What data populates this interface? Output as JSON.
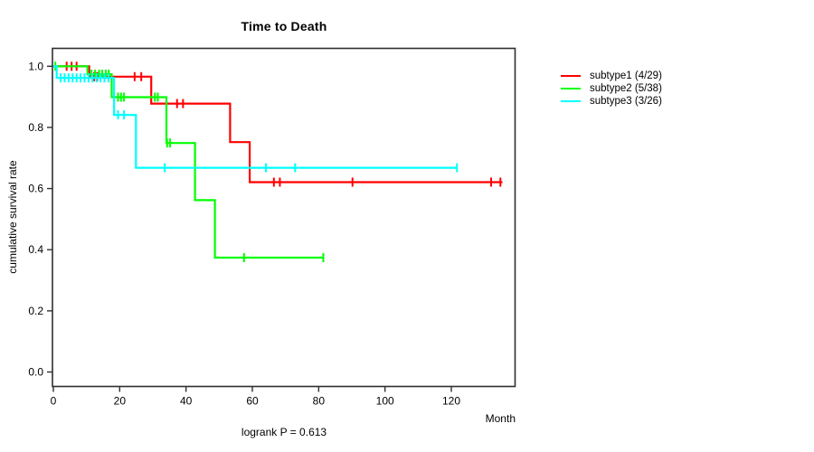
{
  "chart_data": {
    "type": "line",
    "subtype": "kaplan-meier-step",
    "title": "Time to Death",
    "xlabel": "Month",
    "ylabel": "cumulative survival rate",
    "annotation": "logrank P = 0.613",
    "xlim": [
      0,
      140
    ],
    "ylim": [
      0,
      1.0
    ],
    "grid": false,
    "legend_position": "right",
    "x_ticks": [
      0,
      20,
      40,
      60,
      80,
      100,
      120
    ],
    "y_ticks": [
      "0.0",
      "0.2",
      "0.4",
      "0.6",
      "0.8",
      "1.0"
    ],
    "axis_color": "#2f2f2f",
    "series": [
      {
        "name": "subtype1",
        "label": "subtype1 (4/29)",
        "color": "#ff0000",
        "events_over_n": "4/29",
        "steps": [
          [
            0,
            1.0
          ],
          [
            10.8,
            1.0
          ],
          [
            10.8,
            0.966
          ],
          [
            29.5,
            0.966
          ],
          [
            29.5,
            0.878
          ],
          [
            53.3,
            0.878
          ],
          [
            53.3,
            0.752
          ],
          [
            59.2,
            0.752
          ],
          [
            59.2,
            0.621
          ],
          [
            135.4,
            0.621
          ]
        ],
        "censors": [
          [
            4,
            1.0
          ],
          [
            5.5,
            1.0
          ],
          [
            7,
            1.0
          ],
          [
            12.3,
            0.966
          ],
          [
            13.2,
            0.966
          ],
          [
            24.5,
            0.966
          ],
          [
            26.5,
            0.966
          ],
          [
            37.3,
            0.878
          ],
          [
            39.1,
            0.878
          ],
          [
            66.5,
            0.621
          ],
          [
            68.3,
            0.621
          ],
          [
            90.2,
            0.621
          ],
          [
            132,
            0.621
          ],
          [
            134.8,
            0.621
          ]
        ]
      },
      {
        "name": "subtype2",
        "label": "subtype2 (5/38)",
        "color": "#00ff00",
        "events_over_n": "5/38",
        "steps": [
          [
            0,
            1.0
          ],
          [
            10.3,
            1.0
          ],
          [
            10.3,
            0.974
          ],
          [
            17.6,
            0.974
          ],
          [
            17.6,
            0.899
          ],
          [
            34.1,
            0.899
          ],
          [
            34.1,
            0.749
          ],
          [
            42.7,
            0.749
          ],
          [
            42.7,
            0.562
          ],
          [
            48.7,
            0.562
          ],
          [
            48.7,
            0.374
          ],
          [
            81.4,
            0.374
          ]
        ],
        "censors": [
          [
            0.6,
            1.0
          ],
          [
            11.5,
            0.974
          ],
          [
            12.6,
            0.974
          ],
          [
            13.8,
            0.974
          ],
          [
            14.7,
            0.974
          ],
          [
            15.8,
            0.974
          ],
          [
            16.7,
            0.974
          ],
          [
            19.5,
            0.899
          ],
          [
            20.4,
            0.899
          ],
          [
            21.3,
            0.899
          ],
          [
            30.6,
            0.899
          ],
          [
            31.5,
            0.899
          ],
          [
            34.3,
            0.749
          ],
          [
            35.2,
            0.749
          ],
          [
            57.5,
            0.374
          ],
          [
            81.4,
            0.374
          ]
        ]
      },
      {
        "name": "subtype3",
        "label": "subtype3 (3/26)",
        "color": "#00ffff",
        "events_over_n": "3/26",
        "steps": [
          [
            0,
            1.0
          ],
          [
            1,
            1.0
          ],
          [
            1,
            0.962
          ],
          [
            18.3,
            0.962
          ],
          [
            18.3,
            0.841
          ],
          [
            24.9,
            0.841
          ],
          [
            24.9,
            0.668
          ],
          [
            121.7,
            0.668
          ]
        ],
        "censors": [
          [
            2.2,
            0.962
          ],
          [
            3.4,
            0.962
          ],
          [
            4.6,
            0.962
          ],
          [
            5.8,
            0.962
          ],
          [
            7,
            0.962
          ],
          [
            8.2,
            0.962
          ],
          [
            9.4,
            0.962
          ],
          [
            10.6,
            0.962
          ],
          [
            11.8,
            0.962
          ],
          [
            13,
            0.962
          ],
          [
            14.2,
            0.962
          ],
          [
            15.4,
            0.962
          ],
          [
            16.6,
            0.962
          ],
          [
            19.5,
            0.841
          ],
          [
            21.3,
            0.841
          ],
          [
            33.6,
            0.668
          ],
          [
            64.1,
            0.668
          ],
          [
            72.9,
            0.668
          ],
          [
            121.7,
            0.668
          ]
        ]
      }
    ]
  }
}
